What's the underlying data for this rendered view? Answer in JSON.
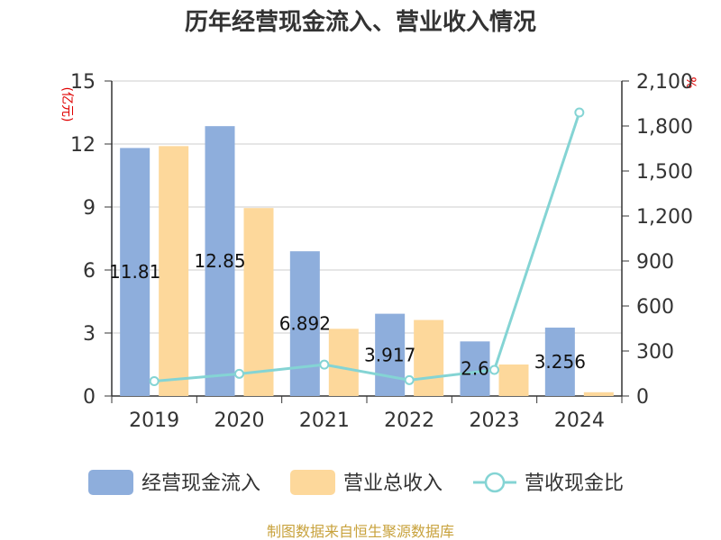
{
  "chart_data": {
    "type": "bar+line",
    "title": "历年经营现金流入、营业收入情况",
    "categories": [
      "2019",
      "2020",
      "2021",
      "2022",
      "2023",
      "2024"
    ],
    "left_axis": {
      "unit": "(亿元)",
      "ylim": [
        0,
        15
      ],
      "ticks": [
        "0",
        "3",
        "6",
        "9",
        "12",
        "15"
      ]
    },
    "right_axis": {
      "unit": "%",
      "ylim": [
        0,
        2100
      ],
      "ticks": [
        "0",
        "300",
        "600",
        "900",
        "1,200",
        "1,500",
        "1,800",
        "2,100"
      ]
    },
    "series": [
      {
        "name": "经营现金流入",
        "type": "bar",
        "axis": "left",
        "color": "#8eaedc",
        "values": [
          11.81,
          12.85,
          6.892,
          3.917,
          2.6,
          3.256
        ],
        "labels": [
          "11.81",
          "12.85",
          "6.892",
          "3.917",
          "2.6",
          "3.256"
        ]
      },
      {
        "name": "营业总收入",
        "type": "bar",
        "axis": "left",
        "color": "#fdd89b",
        "values": [
          11.9,
          8.95,
          3.2,
          3.62,
          1.5,
          0.18
        ]
      },
      {
        "name": "营收现金比",
        "type": "line",
        "axis": "right",
        "color": "#84d4d4",
        "values": [
          99,
          148,
          209,
          106,
          174,
          1890
        ]
      }
    ],
    "grid": true,
    "legend_position": "bottom"
  },
  "footer": {
    "source": "制图数据来自恒生聚源数据库"
  }
}
